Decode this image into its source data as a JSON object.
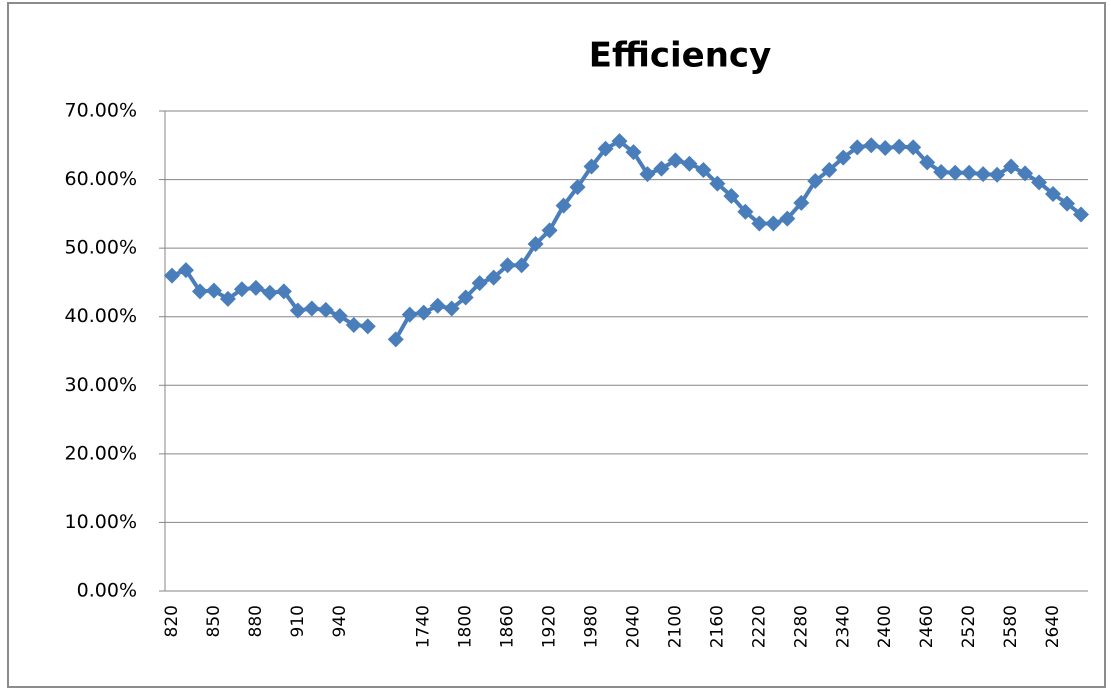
{
  "chart_data": {
    "type": "line",
    "title": "Efficiency",
    "categories": [
      820,
      null,
      null,
      850,
      null,
      null,
      880,
      null,
      null,
      910,
      null,
      null,
      940,
      null,
      null,
      null,
      null,
      null,
      1740,
      null,
      null,
      1800,
      null,
      null,
      1860,
      null,
      null,
      1920,
      null,
      null,
      1980,
      null,
      null,
      2040,
      null,
      null,
      2100,
      null,
      null,
      2160,
      null,
      null,
      2220,
      null,
      null,
      2280,
      null,
      null,
      2340,
      null,
      null,
      2400,
      null,
      null,
      2460,
      null,
      null,
      2520,
      null,
      null,
      2580,
      null,
      null,
      2640,
      null,
      null
    ],
    "series": [
      {
        "name": "Efficiency",
        "color": "#4a7ebb",
        "values": [
          46.0,
          46.8,
          43.7,
          43.8,
          42.6,
          44.0,
          44.2,
          43.5,
          43.7,
          40.9,
          41.2,
          41.0,
          40.1,
          38.8,
          38.6,
          null,
          36.7,
          40.3,
          40.6,
          41.6,
          41.2,
          42.8,
          44.9,
          45.7,
          47.5,
          47.5,
          50.6,
          52.6,
          56.2,
          58.9,
          61.9,
          64.5,
          65.6,
          64.0,
          60.8,
          61.6,
          62.8,
          62.3,
          61.4,
          59.4,
          57.6,
          55.3,
          53.6,
          53.6,
          54.3,
          56.6,
          59.8,
          61.4,
          63.2,
          64.7,
          65.0,
          64.6,
          64.8,
          64.7,
          62.5,
          61.1,
          61.0,
          61.0,
          60.8,
          60.7,
          61.9,
          60.9,
          59.6,
          57.9,
          56.5,
          54.9
        ]
      }
    ],
    "ylim": [
      0,
      70
    ],
    "yticks": [
      {
        "value": 0,
        "label": "0.00%"
      },
      {
        "value": 10,
        "label": "10.00%"
      },
      {
        "value": 20,
        "label": "20.00%"
      },
      {
        "value": 30,
        "label": "30.00%"
      },
      {
        "value": 40,
        "label": "40.00%"
      },
      {
        "value": 50,
        "label": "50.00%"
      },
      {
        "value": 60,
        "label": "60.00%"
      },
      {
        "value": 70,
        "label": "70.00%"
      }
    ],
    "grid": true
  }
}
